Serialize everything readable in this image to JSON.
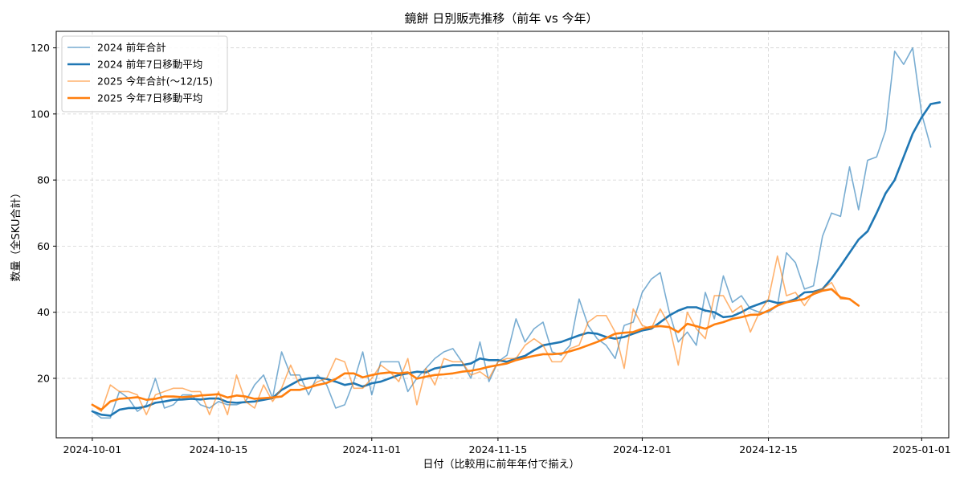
{
  "chart_data": {
    "type": "line",
    "title": "鏡餅 日別販売推移（前年 vs 今年）",
    "xlabel": "日付（比較用に前年年付で揃え）",
    "ylabel": "数量（全SKU合計）",
    "xlim": [
      "2024-09-27",
      "2025-01-04"
    ],
    "ylim": [
      2,
      125
    ],
    "grid": true,
    "legend_position": "top-left",
    "x_ticks": [
      {
        "date": "2024-10-01",
        "label": "2024-10-01"
      },
      {
        "date": "2024-10-15",
        "label": "2024-10-15"
      },
      {
        "date": "2024-11-01",
        "label": "2024-11-01"
      },
      {
        "date": "2024-11-15",
        "label": "2024-11-15"
      },
      {
        "date": "2024-12-01",
        "label": "2024-12-01"
      },
      {
        "date": "2024-12-15",
        "label": "2024-12-15"
      },
      {
        "date": "2025-01-01",
        "label": "2025-01-01"
      }
    ],
    "y_ticks": [
      {
        "value": 20,
        "label": "20"
      },
      {
        "value": 40,
        "label": "40"
      },
      {
        "value": 60,
        "label": "60"
      },
      {
        "value": 80,
        "label": "80"
      },
      {
        "value": 100,
        "label": "100"
      },
      {
        "value": 120,
        "label": "120"
      }
    ],
    "x_start": "2024-10-01",
    "series": [
      {
        "name": "2024 前年合計",
        "color": "#1f77b4",
        "opacity": 0.6,
        "width": 1.6,
        "values": [
          10,
          8,
          8,
          16,
          14,
          10,
          12,
          20,
          11,
          12,
          15,
          15,
          12,
          11,
          13,
          12,
          12,
          13,
          18,
          21,
          14,
          28,
          21,
          21,
          15,
          21,
          18,
          11,
          12,
          19,
          28,
          15,
          25,
          25,
          25,
          16,
          20,
          23,
          26,
          28,
          29,
          25,
          20,
          31,
          19,
          25,
          27,
          38,
          31,
          35,
          37,
          28,
          27,
          30,
          44,
          36,
          32,
          30,
          26,
          36,
          37,
          46,
          50,
          52,
          40,
          31,
          34,
          30,
          46,
          38,
          51,
          43,
          45,
          41,
          40,
          40,
          42,
          58,
          55,
          47,
          48,
          63,
          70,
          69,
          84,
          71,
          86,
          87,
          95,
          119,
          115,
          120,
          100,
          90
        ]
      },
      {
        "name": "2024 前年7日移動平均",
        "color": "#1f77b4",
        "opacity": 1,
        "width": 2.6,
        "values": [
          10,
          9,
          8.7,
          10.5,
          11,
          11,
          11.5,
          12.6,
          13,
          13.5,
          13.6,
          13.8,
          13.6,
          13.9,
          13.9,
          12.8,
          12.6,
          12.8,
          13,
          13.5,
          14,
          16.5,
          18,
          19.5,
          20,
          20.2,
          19.8,
          19,
          18,
          18.5,
          17.5,
          18.5,
          19,
          20,
          21,
          21.5,
          22,
          21.8,
          23,
          23.5,
          24,
          24,
          24.5,
          26,
          25.5,
          25.5,
          25,
          26,
          26.8,
          28.5,
          30,
          30.5,
          31,
          32,
          33,
          33.8,
          33.5,
          32.5,
          32,
          32.5,
          33.5,
          34.5,
          35,
          37,
          39,
          40.5,
          41.5,
          41.5,
          40.5,
          40,
          38.5,
          38.8,
          40,
          41.5,
          42.5,
          43.5,
          42.8,
          43,
          44,
          46,
          46.2,
          47,
          50.2,
          54,
          58,
          62,
          64.5,
          70,
          76,
          80,
          87,
          94,
          99,
          103,
          103.5
        ]
      },
      {
        "name": "2025 今年合計(〜12/15)",
        "color": "#ff7f0e",
        "opacity": 0.6,
        "width": 1.6,
        "values": [
          12,
          10,
          18,
          16,
          16,
          15,
          9,
          15,
          16,
          17,
          17,
          16,
          16,
          9,
          16,
          9,
          21,
          13,
          11,
          18,
          13,
          17,
          24,
          18,
          17,
          19,
          20,
          26,
          25,
          17,
          17,
          20,
          24,
          22,
          19,
          26,
          12,
          23,
          18,
          26,
          25,
          25,
          21,
          22,
          20,
          25,
          26,
          26,
          30,
          32,
          30,
          25,
          25,
          29,
          30,
          37,
          39,
          39,
          34,
          23,
          41,
          36,
          35,
          41,
          36,
          24,
          40,
          35,
          32,
          45,
          45,
          40,
          42,
          34,
          40,
          44,
          57,
          45,
          46,
          42,
          46,
          47,
          49,
          44,
          44,
          42
        ]
      },
      {
        "name": "2025 今年7日移動平均",
        "color": "#ff7f0e",
        "opacity": 1,
        "width": 2.6,
        "values": [
          12,
          10.5,
          13,
          13.8,
          14,
          14.3,
          13.5,
          13.8,
          14.5,
          14.5,
          14.3,
          14.5,
          14.8,
          15,
          15.2,
          14.2,
          14.8,
          14.5,
          13.8,
          14,
          14.2,
          14.5,
          16.5,
          16.5,
          17.2,
          18,
          18.6,
          19.8,
          21.5,
          21.5,
          20.3,
          21,
          21.5,
          21.8,
          21.5,
          21.8,
          19.9,
          20.5,
          21,
          21.2,
          21.5,
          22,
          22.3,
          22.8,
          23.5,
          24,
          24.5,
          25.5,
          26.2,
          26.8,
          27.3,
          27.3,
          27.5,
          28.2,
          29,
          30,
          31,
          32.2,
          33.5,
          33.8,
          34,
          35,
          35.6,
          35.8,
          35.5,
          34,
          36.5,
          35.8,
          35,
          36.3,
          37,
          38,
          38.5,
          39.2,
          39.3,
          40.5,
          42,
          43,
          43.5,
          44,
          45.5,
          46.5,
          47,
          44.5,
          44,
          42
        ]
      }
    ]
  }
}
